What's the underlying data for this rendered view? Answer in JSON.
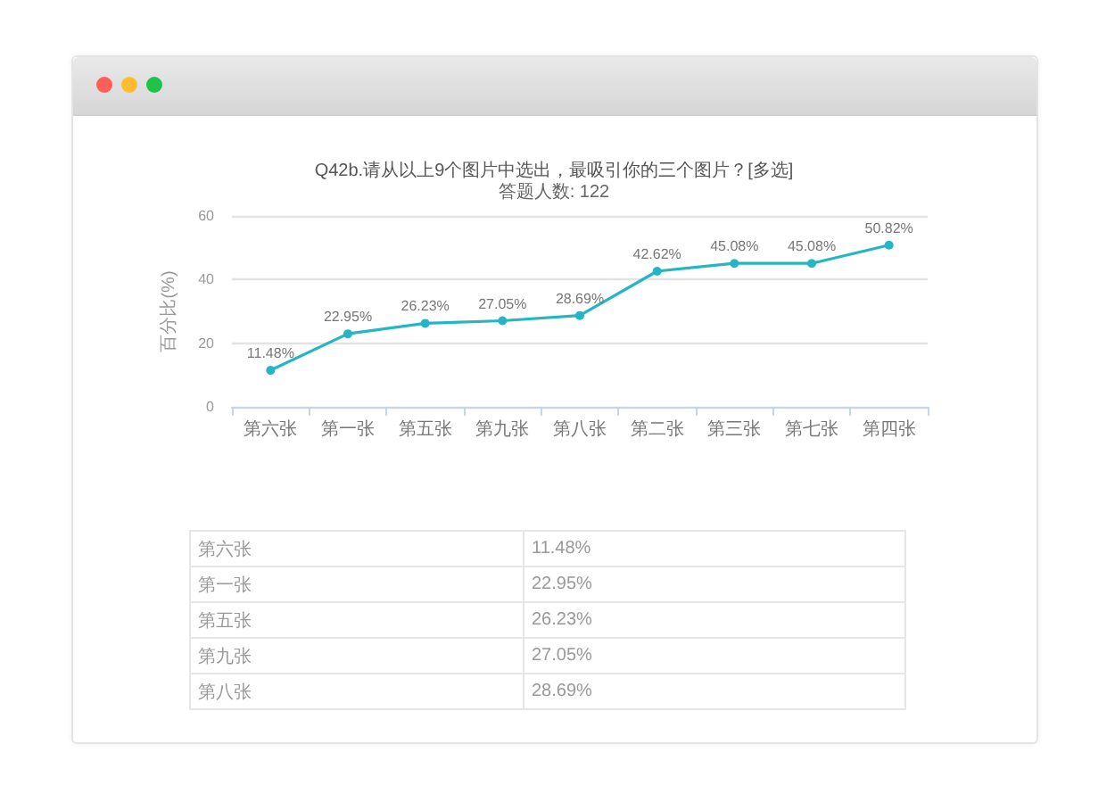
{
  "chart_data": [
    {
      "type": "line",
      "title": "Q42b.请从以上9个图片中选出，最吸引你的三个图片？[多选]",
      "subtitle": "答题人数: 122",
      "ylabel": "百分比(%)",
      "categories": [
        "第六张",
        "第一张",
        "第五张",
        "第九张",
        "第八张",
        "第二张",
        "第三张",
        "第七张",
        "第四张"
      ],
      "series": [
        {
          "color": "#26b5c4",
          "values": [
            11.48,
            22.95,
            26.23,
            27.05,
            28.69,
            42.62,
            45.08,
            45.08,
            50.82
          ],
          "value_labels": [
            "11.48%",
            "22.95%",
            "26.23%",
            "27.05%",
            "28.69%",
            "42.62%",
            "45.08%",
            "45.08%",
            "50.82%"
          ]
        }
      ],
      "ylim": [
        0,
        60
      ],
      "yticks": [
        0,
        20,
        40,
        60
      ],
      "grid": "y",
      "marker": "circle",
      "line_style": "solid"
    },
    {
      "type": "other",
      "categories": [
        "第六张",
        "第一张",
        "第五张",
        "第九张",
        "第八张"
      ],
      "value_labels": [
        "11.48%",
        "22.95%",
        "26.23%",
        "27.05%",
        "28.69%"
      ]
    }
  ]
}
